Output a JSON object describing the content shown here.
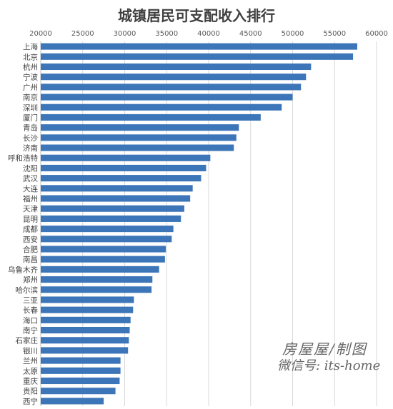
{
  "chart_data": {
    "type": "bar",
    "orientation": "horizontal",
    "title": "城镇居民可支配收入排行",
    "xlim": [
      20000,
      60000
    ],
    "xticks": [
      "20000",
      "25000",
      "30000",
      "35000",
      "40000",
      "45000",
      "50000",
      "55000",
      "60000"
    ],
    "x_axis_position": "top",
    "grid": true,
    "bar_color": "#3d76b8",
    "categories": [
      "上海",
      "北京",
      "杭州",
      "宁波",
      "广州",
      "南京",
      "深圳",
      "厦门",
      "青岛",
      "长沙",
      "济南",
      "呼和浩特",
      "沈阳",
      "武汉",
      "大连",
      "福州",
      "天津",
      "昆明",
      "成都",
      "西安",
      "合肥",
      "南昌",
      "乌鲁木齐",
      "郑州",
      "哈尔滨",
      "三亚",
      "长春",
      "海口",
      "南宁",
      "石家庄",
      "银川",
      "兰州",
      "太原",
      "重庆",
      "贵阳",
      "西宁"
    ],
    "values": [
      57700,
      57200,
      52200,
      51600,
      51000,
      50000,
      48700,
      46200,
      43600,
      43300,
      43000,
      40200,
      39700,
      39100,
      38100,
      37800,
      37100,
      36700,
      35800,
      35600,
      34900,
      34800,
      34100,
      33300,
      33200,
      31100,
      31000,
      30700,
      30600,
      30500,
      30400,
      29500,
      29500,
      29400,
      28900,
      27500
    ]
  },
  "watermark": {
    "line1": "房屋屋/制图",
    "line2": "微信号: its-home"
  }
}
